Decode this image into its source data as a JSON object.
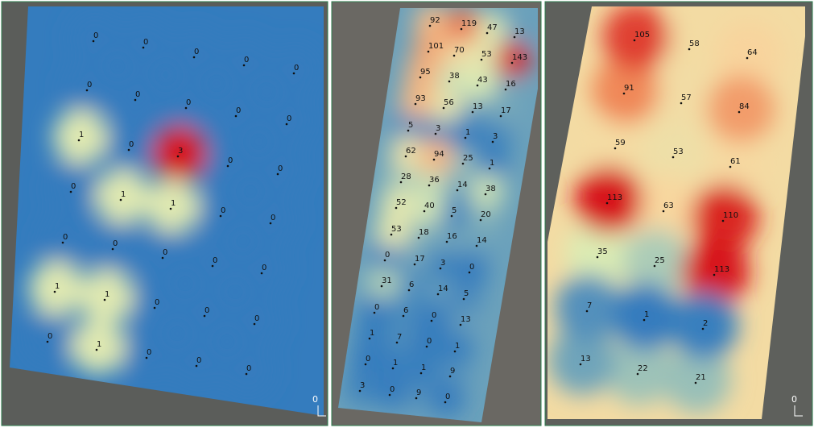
{
  "panels": [
    {
      "points": [
        0,
        0,
        0,
        0,
        0,
        0,
        0,
        0,
        0,
        0,
        1,
        0,
        3,
        0,
        0,
        0,
        1,
        1,
        0,
        0,
        0,
        0,
        0,
        0,
        0,
        1,
        1,
        0,
        0,
        0,
        0,
        1,
        0,
        0,
        0
      ],
      "scale_label": "0"
    },
    {
      "points": [
        92,
        119,
        47,
        13,
        101,
        70,
        53,
        143,
        95,
        38,
        43,
        16,
        93,
        56,
        13,
        17,
        5,
        3,
        1,
        3,
        62,
        94,
        25,
        1,
        28,
        36,
        14,
        38,
        52,
        40,
        5,
        20,
        53,
        18,
        16,
        14,
        0,
        17,
        3,
        0,
        31,
        6,
        14,
        5,
        0,
        6,
        0,
        13,
        1,
        7,
        0,
        1,
        0,
        1,
        1,
        9,
        3,
        0,
        9,
        0
      ]
    },
    {
      "points": [
        105,
        58,
        64,
        91,
        57,
        84,
        59,
        53,
        61,
        113,
        63,
        110,
        35,
        25,
        113,
        7,
        1,
        2,
        13,
        22,
        21
      ],
      "scale_label": "0"
    }
  ]
}
